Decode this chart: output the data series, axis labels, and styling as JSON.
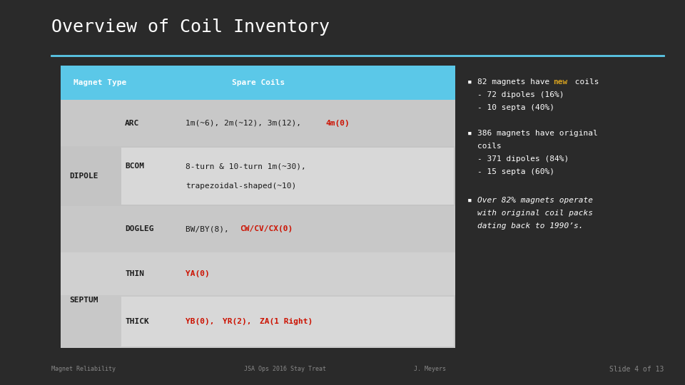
{
  "title": "Overview of Coil Inventory",
  "bg_color": "#2a2a2a",
  "title_color": "#ffffff",
  "title_font": 18,
  "line_color": "#5bc8e8",
  "table_header_bg": "#5bc8e8",
  "table_header_text": "#ffffff",
  "footer_left": "Magnet Reliability",
  "footer_center": "JSA Ops 2016 Stay Treat",
  "footer_right_pre": "J. Meyers",
  "footer_slide": "Slide 4 of 13",
  "footer_color": "#888888",
  "red": "#cc1100",
  "yellow": "#d4a020",
  "white": "#ffffff",
  "dark_text": "#1a1a1a",
  "row_light": "#cccccc",
  "row_dark": "#bbbbbb",
  "row_white": "#e8e8e8"
}
